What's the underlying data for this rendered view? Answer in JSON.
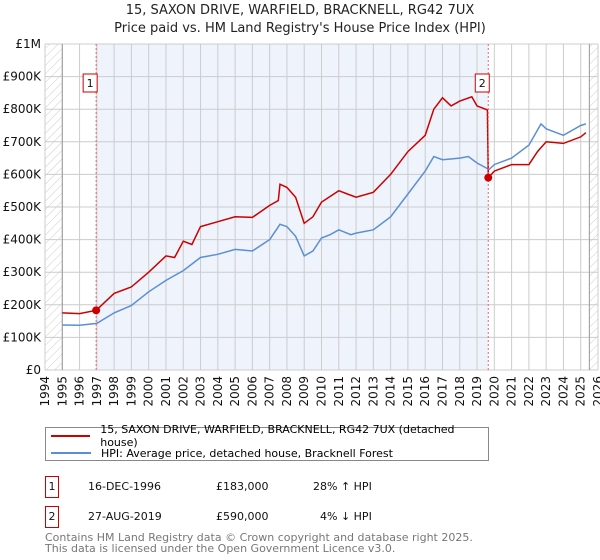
{
  "title": "15, SAXON DRIVE, WARFIELD, BRACKNELL, RG42 7UX",
  "subtitle": "Price paid vs. HM Land Registry's House Price Index (HPI)",
  "colors": {
    "property": "#cc0000",
    "hpi": "#5b8fd4",
    "shade": "#eef3fc"
  },
  "chart_data": {
    "type": "line",
    "xlim": [
      1994,
      2026
    ],
    "ylim": [
      0,
      1000000
    ],
    "x_ticks": [
      "1994",
      "1995",
      "1996",
      "1997",
      "1998",
      "1999",
      "2000",
      "2001",
      "2002",
      "2003",
      "2004",
      "2005",
      "2006",
      "2007",
      "2008",
      "2009",
      "2010",
      "2011",
      "2012",
      "2013",
      "2014",
      "2015",
      "2016",
      "2017",
      "2018",
      "2019",
      "2020",
      "2021",
      "2022",
      "2023",
      "2024",
      "2025",
      "2026"
    ],
    "y_ticks": [
      {
        "v": 0,
        "label": "£0"
      },
      {
        "v": 100000,
        "label": "£100K"
      },
      {
        "v": 200000,
        "label": "£200K"
      },
      {
        "v": 300000,
        "label": "£300K"
      },
      {
        "v": 400000,
        "label": "£400K"
      },
      {
        "v": 500000,
        "label": "£500K"
      },
      {
        "v": 600000,
        "label": "£600K"
      },
      {
        "v": 700000,
        "label": "£700K"
      },
      {
        "v": 800000,
        "label": "£800K"
      },
      {
        "v": 900000,
        "label": "£900K"
      },
      {
        "v": 1000000,
        "label": "£1M"
      }
    ],
    "grid": true,
    "series": [
      {
        "name": "15, SAXON DRIVE, WARFIELD, BRACKNELL, RG42 7UX (detached house)",
        "color": "#cc0000",
        "x": [
          1995,
          1996,
          1996.96,
          1998,
          1999,
          2000,
          2001,
          2001.5,
          2002,
          2002.5,
          2003,
          2004,
          2005,
          2006,
          2007,
          2007.5,
          2007.6,
          2008,
          2008.5,
          2009,
          2009.5,
          2010,
          2011,
          2011.5,
          2012,
          2013,
          2014,
          2015,
          2016,
          2016.5,
          2017,
          2017.5,
          2018,
          2018.7,
          2019,
          2019.6,
          2019.65,
          2020,
          2021,
          2022,
          2022.5,
          2023,
          2024,
          2025,
          2025.3
        ],
        "y": [
          175000,
          173000,
          183000,
          235000,
          255000,
          300000,
          350000,
          345000,
          395000,
          385000,
          440000,
          455000,
          470000,
          468000,
          505000,
          520000,
          570000,
          560000,
          530000,
          450000,
          470000,
          515000,
          550000,
          540000,
          530000,
          545000,
          600000,
          670000,
          720000,
          800000,
          835000,
          810000,
          825000,
          838000,
          810000,
          798000,
          590000,
          610000,
          630000,
          630000,
          670000,
          700000,
          695000,
          715000,
          728000
        ]
      },
      {
        "name": "HPI: Average price, detached house, Bracknell Forest",
        "color": "#5b8fd4",
        "x": [
          1995,
          1996,
          1997,
          1998,
          1999,
          2000,
          2001,
          2002,
          2003,
          2004,
          2005,
          2006,
          2007,
          2007.6,
          2008,
          2008.5,
          2009,
          2009.5,
          2010,
          2010.5,
          2011,
          2011.7,
          2012,
          2013,
          2014,
          2015,
          2016,
          2016.5,
          2017,
          2018,
          2018.5,
          2019,
          2019.7,
          2020,
          2021,
          2022,
          2022.7,
          2023,
          2024,
          2025,
          2025.3
        ],
        "y": [
          138000,
          137000,
          143000,
          175000,
          198000,
          240000,
          275000,
          305000,
          345000,
          355000,
          370000,
          365000,
          400000,
          447000,
          440000,
          410000,
          350000,
          365000,
          405000,
          415000,
          430000,
          415000,
          420000,
          430000,
          470000,
          540000,
          610000,
          655000,
          645000,
          650000,
          655000,
          635000,
          615000,
          630000,
          650000,
          690000,
          755000,
          740000,
          720000,
          750000,
          755000
        ]
      }
    ],
    "sales": [
      {
        "id": "1",
        "x": 1996.96,
        "y": 183000,
        "date": "16-DEC-1996",
        "price": "£183,000",
        "hpi_diff": "28% ↑ HPI"
      },
      {
        "id": "2",
        "x": 2019.65,
        "y": 590000,
        "date": "27-AUG-2019",
        "price": "£590,000",
        "hpi_diff": "4% ↓ HPI"
      }
    ],
    "legend_position": "bottom"
  },
  "footer": {
    "line1": "Contains HM Land Registry data © Crown copyright and database right 2025.",
    "line2": "This data is licensed under the Open Government Licence v3.0."
  }
}
